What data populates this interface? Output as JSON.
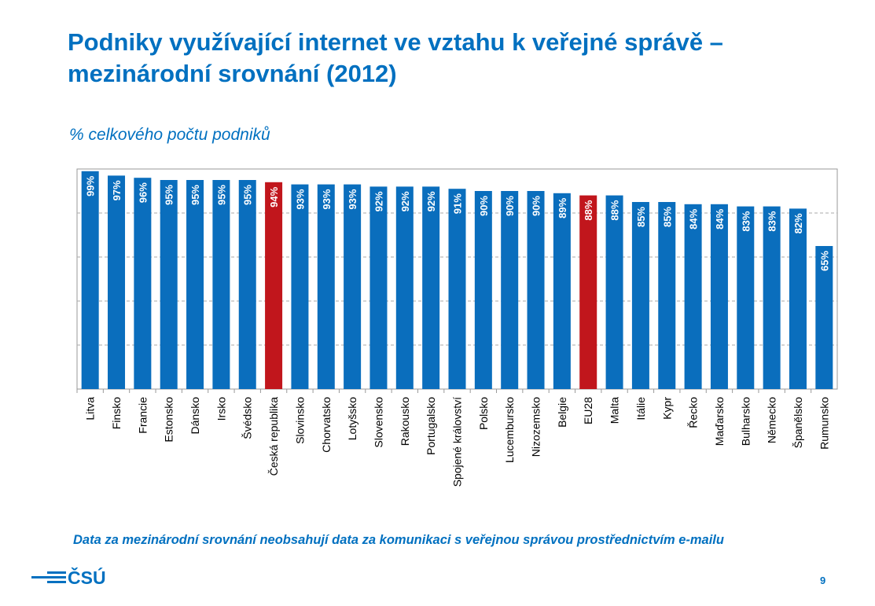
{
  "chart_data": {
    "type": "bar",
    "title": "Podniky využívající internet ve vztahu k veřejné správě – mezinárodní srovnání (2012)",
    "subtitle": "% celkového počtu podniků",
    "note": "Data za mezinárodní srovnání neobsahují data za komunikaci s veřejnou správou prostřednictvím e-mailu",
    "categories": [
      "Litva",
      "Finsko",
      "Francie",
      "Estonsko",
      "Dánsko",
      "Irsko",
      "Švédsko",
      "Česká republika",
      "Slovinsko",
      "Chorvatsko",
      "Lotyšsko",
      "Slovensko",
      "Rakousko",
      "Portugalsko",
      "Spojené království",
      "Polsko",
      "Lucembursko",
      "Nizozemsko",
      "Belgie",
      "EU28",
      "Malta",
      "Itálie",
      "Kypr",
      "Řecko",
      "Maďarsko",
      "Bulharsko",
      "Německo",
      "Španělsko",
      "Rumunsko"
    ],
    "values": [
      99,
      97,
      96,
      95,
      95,
      95,
      95,
      94,
      93,
      93,
      93,
      92,
      92,
      92,
      91,
      90,
      90,
      90,
      89,
      88,
      88,
      85,
      85,
      84,
      84,
      83,
      83,
      82,
      65
    ],
    "value_labels": [
      "99%",
      "97%",
      "96%",
      "95%",
      "95%",
      "95%",
      "95%",
      "94%",
      "93%",
      "93%",
      "93%",
      "92%",
      "92%",
      "92%",
      "91%",
      "90%",
      "90%",
      "90%",
      "89%",
      "88%",
      "88%",
      "85%",
      "85%",
      "84%",
      "84%",
      "83%",
      "83%",
      "82%",
      "65%"
    ],
    "colors": [
      "#0a6ebd",
      "#0a6ebd",
      "#0a6ebd",
      "#0a6ebd",
      "#0a6ebd",
      "#0a6ebd",
      "#0a6ebd",
      "#c1161c",
      "#0a6ebd",
      "#0a6ebd",
      "#0a6ebd",
      "#0a6ebd",
      "#0a6ebd",
      "#0a6ebd",
      "#0a6ebd",
      "#0a6ebd",
      "#0a6ebd",
      "#0a6ebd",
      "#0a6ebd",
      "#c1161c",
      "#0a6ebd",
      "#0a6ebd",
      "#0a6ebd",
      "#0a6ebd",
      "#0a6ebd",
      "#0a6ebd",
      "#0a6ebd",
      "#0a6ebd",
      "#0a6ebd"
    ],
    "ylim": [
      0,
      100
    ],
    "yticks": [
      0,
      20,
      40,
      60,
      80,
      100
    ],
    "grid": true
  },
  "footer": {
    "logo": "ČSÚ",
    "page_number": "9"
  }
}
